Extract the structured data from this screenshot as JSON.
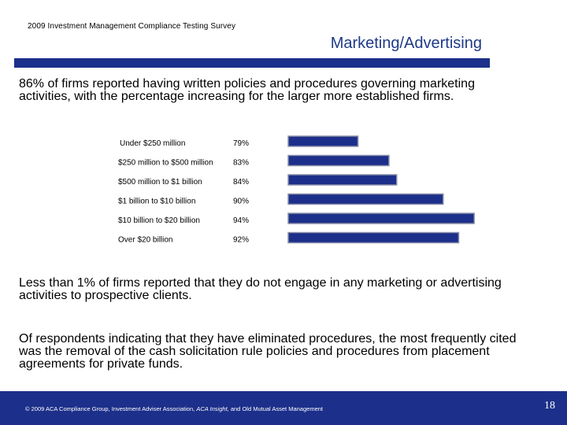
{
  "header": {
    "survey_title": "2009 Investment Management Compliance Testing Survey",
    "section_title": "Marketing/Advertising"
  },
  "colors": {
    "bar_fill": "#1c2f8a",
    "bar_outline": "#8a8fa8",
    "band": "#1c2f8a"
  },
  "body": {
    "intro": "86% of firms reported having written policies and procedures governing marketing activities, with the percentage increasing for the larger more established firms.",
    "note1": "Less than 1% of firms reported that they do not engage in any marketing or advertising activities to prospective clients.",
    "note2": "Of respondents indicating that they have eliminated procedures, the most frequently cited was the removal of the cash solicitation rule policies and procedures from placement agreements for private funds."
  },
  "chart_data": {
    "type": "bar",
    "orientation": "horizontal",
    "categories": [
      "Under $250 million",
      "$250 million to $500 million",
      "$500 million to $1 billion",
      "$1 billion to $10 billion",
      "$10 billion to $20 billion",
      "Over $20 billion"
    ],
    "values": [
      79,
      83,
      84,
      90,
      94,
      92
    ],
    "value_labels": [
      "79%",
      "83%",
      "84%",
      "90%",
      "94%",
      "92%"
    ],
    "xlim": [
      70,
      95
    ],
    "grid": false,
    "legend": "none"
  },
  "footer": {
    "copyright_prefix": "© 2009 ACA Compliance Group, Investment Adviser Association,",
    "copyright_italic": "ACA Insight,",
    "copyright_suffix": "and Old Mutual Asset Management",
    "page_number": "18"
  }
}
